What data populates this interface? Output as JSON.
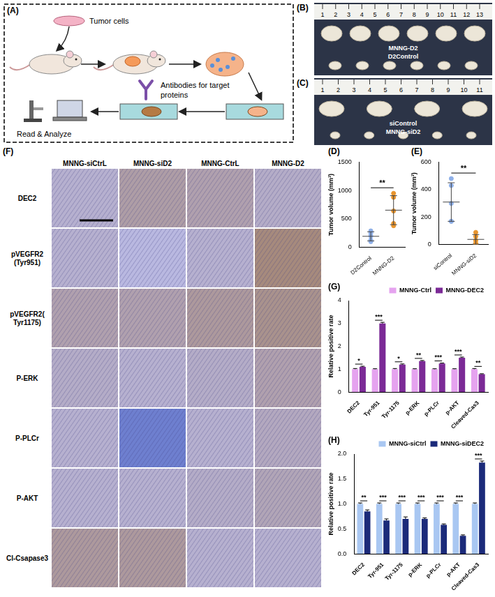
{
  "panels": {
    "A": {
      "letter": "(A)",
      "tumor_cells": "Tumor cells",
      "antibodies": "Antibodies for target proteins",
      "read_analyze": "Read & Analyze"
    },
    "B": {
      "letter": "(B)",
      "ruler": [
        1,
        2,
        3,
        4,
        5,
        6,
        7,
        8,
        9,
        10,
        11,
        12,
        13
      ],
      "top_row": "MNNG-D2",
      "bottom_row": "D2Control"
    },
    "C": {
      "letter": "(C)",
      "ruler": [
        1,
        2,
        3,
        4,
        5,
        6,
        7,
        8,
        9,
        10,
        11
      ],
      "top_row": "siControl",
      "bottom_row": "MNNG-siD2"
    },
    "F": {
      "letter": "(F)",
      "columns": [
        "MNNG-siCtrL",
        "MNNG-siD2",
        "MNNG-CtrL",
        "MNNG-D2"
      ],
      "rows": [
        "DEC2",
        "pVEGFR2 (Tyr951)",
        "pVEGFR2( Tyr1175)",
        "P-ERK",
        "P-PLCr",
        "P-AKT",
        "Cl-Csapase3"
      ]
    }
  },
  "chart_data": [
    {
      "panel": "(D)",
      "type": "scatter",
      "categories": [
        "D2Control",
        "MNNG-D2"
      ],
      "values": [
        [
          200,
          100,
          250,
          130,
          290
        ],
        [
          950,
          880,
          640,
          420,
          380
        ]
      ],
      "means": [
        194,
        654
      ],
      "sd": [
        80,
        255
      ],
      "colors": [
        "#8fb0e8",
        "#e8952e"
      ],
      "marker": "circle",
      "ylabel": "Tumor volume (mm³)",
      "ylim": [
        0,
        1500
      ],
      "yticks": [
        0,
        500,
        1000,
        1500
      ],
      "significance": "**",
      "grid": false
    },
    {
      "panel": "(E)",
      "type": "scatter",
      "categories": [
        "siControl",
        "MNNG-siD2"
      ],
      "values": [
        [
          480,
          430,
          300,
          170,
          170
        ],
        [
          90,
          60,
          30,
          10,
          5
        ]
      ],
      "means": [
        310,
        39
      ],
      "sd": [
        140,
        35
      ],
      "colors": [
        "#8fb0e8",
        "#e8952e"
      ],
      "marker": "circle",
      "ylabel": "Tumor volume (mm³)",
      "ylim": [
        0,
        600
      ],
      "yticks": [
        0,
        200,
        400,
        600
      ],
      "significance": "**",
      "grid": false
    },
    {
      "panel": "(G)",
      "type": "bar",
      "categories": [
        "DEC2",
        "Tyr-951",
        "Tyr-1175",
        "p-ERK",
        "p-PLCr",
        "p-AKT",
        "Cleaved-Cas3"
      ],
      "series": [
        {
          "name": "MNNG-Ctrl",
          "color": "#e5a3ef",
          "values": [
            1.0,
            1.0,
            1.0,
            1.0,
            1.0,
            1.0,
            1.0
          ],
          "errors": [
            0.03,
            0.02,
            0.03,
            0.02,
            0.02,
            0.02,
            0.03
          ]
        },
        {
          "name": "MNNG-DEC2",
          "color": "#7b2a96",
          "values": [
            1.1,
            3.0,
            1.2,
            1.35,
            1.25,
            1.5,
            0.78
          ],
          "errors": [
            0.03,
            0.05,
            0.03,
            0.03,
            0.02,
            0.03,
            0.02
          ]
        }
      ],
      "significance": [
        "*",
        "***",
        "*",
        "**",
        "***",
        "***",
        "**"
      ],
      "ylabel": "Relative positive rate",
      "ylim": [
        0,
        4
      ],
      "yticks": [
        0,
        1,
        2,
        3,
        4
      ],
      "legend": "top",
      "grid": false
    },
    {
      "panel": "(H)",
      "type": "bar",
      "categories": [
        "DEC2",
        "Tyr-951",
        "Tyr-1175",
        "p-ERK",
        "p-PLCr",
        "p-AKT",
        "Cleaved-Cas3"
      ],
      "series": [
        {
          "name": "MNNG-siCtrl",
          "color": "#a9c7f2",
          "values": [
            1.0,
            1.0,
            1.0,
            1.0,
            1.0,
            1.0,
            1.0
          ],
          "errors": [
            0.02,
            0.02,
            0.02,
            0.02,
            0.02,
            0.02,
            0.02
          ]
        },
        {
          "name": "MNNG-siDEC2",
          "color": "#1b2a7a",
          "values": [
            0.85,
            0.67,
            0.7,
            0.7,
            0.58,
            0.36,
            1.83
          ],
          "errors": [
            0.03,
            0.03,
            0.04,
            0.02,
            0.02,
            0.02,
            0.03
          ]
        }
      ],
      "significance": [
        "**",
        "***",
        "***",
        "***",
        "***",
        "***",
        "***"
      ],
      "ylabel": "Relative positive rate",
      "ylim": [
        0,
        2
      ],
      "yticks": [
        {
          "value": 0,
          "label": "0.0"
        },
        {
          "value": 0.5,
          "label": "0.5"
        },
        {
          "value": 1,
          "label": "1.0"
        },
        {
          "value": 1.5,
          "label": "1.5"
        },
        {
          "value": 2,
          "label": "2.0"
        }
      ],
      "legend": "top",
      "grid": false
    }
  ]
}
